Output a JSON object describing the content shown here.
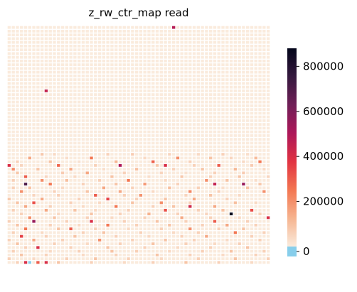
{
  "chart_data": {
    "type": "heatmap",
    "title": "z_rw_ctr_map read",
    "xlabel": "",
    "ylabel": "",
    "grid": false,
    "legend": "colorbar-right",
    "rows": 64,
    "cols": 64,
    "colorbar": {
      "min": 0,
      "max": 880000,
      "ticks": [
        0,
        200000,
        400000,
        600000,
        800000
      ],
      "tick_labels": [
        "0",
        "200000",
        "400000",
        "600000",
        "800000"
      ],
      "zero_color": "#87ceeb"
    },
    "colorscale": [
      "#faebdd",
      "#f6b48f",
      "#f37651",
      "#e13342",
      "#ad1759",
      "#701f57",
      "#35193e",
      "#03051a"
    ],
    "cell_gap_color": "#ffffff",
    "cells": [
      [
        0,
        40,
        480000
      ],
      [
        17,
        9,
        450000
      ],
      [
        34,
        8,
        80000
      ],
      [
        34,
        11,
        40000
      ],
      [
        34,
        24,
        60000
      ],
      [
        34,
        30,
        70000
      ],
      [
        34,
        39,
        50000
      ],
      [
        34,
        46,
        40000
      ],
      [
        34,
        52,
        60000
      ],
      [
        34,
        58,
        30000
      ],
      [
        35,
        5,
        150000
      ],
      [
        35,
        14,
        30000
      ],
      [
        35,
        20,
        250000
      ],
      [
        35,
        33,
        40000
      ],
      [
        35,
        41,
        200000
      ],
      [
        35,
        49,
        90000
      ],
      [
        35,
        54,
        50000
      ],
      [
        35,
        60,
        110000
      ],
      [
        36,
        2,
        60000
      ],
      [
        36,
        10,
        90000
      ],
      [
        36,
        17,
        20000
      ],
      [
        36,
        26,
        120000
      ],
      [
        36,
        35,
        290000
      ],
      [
        36,
        44,
        60000
      ],
      [
        36,
        57,
        40000
      ],
      [
        36,
        61,
        250000
      ],
      [
        37,
        0,
        400000
      ],
      [
        37,
        3,
        50000
      ],
      [
        37,
        12,
        280000
      ],
      [
        37,
        21,
        60000
      ],
      [
        37,
        27,
        500000
      ],
      [
        37,
        36,
        80000
      ],
      [
        37,
        38,
        400000
      ],
      [
        37,
        45,
        60000
      ],
      [
        37,
        51,
        300000
      ],
      [
        37,
        59,
        70000
      ],
      [
        38,
        1,
        210000
      ],
      [
        38,
        7,
        90000
      ],
      [
        38,
        15,
        160000
      ],
      [
        38,
        23,
        30000
      ],
      [
        38,
        31,
        100000
      ],
      [
        38,
        40,
        60000
      ],
      [
        38,
        47,
        90000
      ],
      [
        38,
        55,
        120000
      ],
      [
        38,
        62,
        40000
      ],
      [
        39,
        2,
        80000
      ],
      [
        39,
        13,
        70000
      ],
      [
        39,
        19,
        150000
      ],
      [
        39,
        28,
        60000
      ],
      [
        39,
        37,
        50000
      ],
      [
        39,
        43,
        20000
      ],
      [
        39,
        50,
        60000
      ],
      [
        39,
        57,
        70000
      ],
      [
        40,
        4,
        300000
      ],
      [
        40,
        9,
        50000
      ],
      [
        40,
        16,
        40000
      ],
      [
        40,
        25,
        90000
      ],
      [
        40,
        34,
        30000
      ],
      [
        40,
        42,
        80000
      ],
      [
        40,
        49,
        60000
      ],
      [
        40,
        56,
        90000
      ],
      [
        40,
        63,
        50000
      ],
      [
        41,
        1,
        60000
      ],
      [
        41,
        8,
        200000
      ],
      [
        41,
        14,
        100000
      ],
      [
        41,
        22,
        60000
      ],
      [
        41,
        29,
        250000
      ],
      [
        41,
        38,
        40000
      ],
      [
        41,
        48,
        200000
      ],
      [
        41,
        53,
        90000
      ],
      [
        41,
        60,
        30000
      ],
      [
        42,
        4,
        700000
      ],
      [
        42,
        10,
        250000
      ],
      [
        42,
        18,
        60000
      ],
      [
        42,
        26,
        90000
      ],
      [
        42,
        33,
        180000
      ],
      [
        42,
        41,
        60000
      ],
      [
        42,
        50,
        450000
      ],
      [
        42,
        57,
        550000
      ],
      [
        42,
        61,
        80000
      ],
      [
        43,
        1,
        60000
      ],
      [
        43,
        5,
        90000
      ],
      [
        43,
        13,
        40000
      ],
      [
        43,
        23,
        150000
      ],
      [
        43,
        30,
        60000
      ],
      [
        43,
        39,
        100000
      ],
      [
        43,
        46,
        60000
      ],
      [
        43,
        52,
        30000
      ],
      [
        43,
        58,
        90000
      ],
      [
        44,
        3,
        200000
      ],
      [
        44,
        11,
        60000
      ],
      [
        44,
        19,
        90000
      ],
      [
        44,
        27,
        150000
      ],
      [
        44,
        35,
        40000
      ],
      [
        44,
        44,
        220000
      ],
      [
        44,
        51,
        60000
      ],
      [
        44,
        62,
        200000
      ],
      [
        45,
        6,
        50000
      ],
      [
        45,
        12,
        60000
      ],
      [
        45,
        21,
        300000
      ],
      [
        45,
        28,
        60000
      ],
      [
        45,
        32,
        190000
      ],
      [
        45,
        43,
        50000
      ],
      [
        45,
        49,
        90000
      ],
      [
        45,
        56,
        40000
      ],
      [
        46,
        0,
        80000
      ],
      [
        46,
        8,
        150000
      ],
      [
        46,
        17,
        60000
      ],
      [
        46,
        24,
        350000
      ],
      [
        46,
        31,
        60000
      ],
      [
        46,
        38,
        90000
      ],
      [
        46,
        45,
        150000
      ],
      [
        46,
        53,
        60000
      ],
      [
        47,
        2,
        90000
      ],
      [
        47,
        6,
        320000
      ],
      [
        47,
        15,
        60000
      ],
      [
        47,
        22,
        40000
      ],
      [
        47,
        30,
        90000
      ],
      [
        47,
        37,
        200000
      ],
      [
        47,
        44,
        60000
      ],
      [
        47,
        55,
        100000
      ],
      [
        47,
        60,
        40000
      ],
      [
        48,
        4,
        150000
      ],
      [
        48,
        10,
        60000
      ],
      [
        48,
        18,
        40000
      ],
      [
        48,
        26,
        250000
      ],
      [
        48,
        35,
        60000
      ],
      [
        48,
        40,
        90000
      ],
      [
        48,
        44,
        420000
      ],
      [
        48,
        50,
        150000
      ],
      [
        49,
        1,
        60000
      ],
      [
        49,
        9,
        150000
      ],
      [
        49,
        16,
        90000
      ],
      [
        49,
        21,
        40000
      ],
      [
        49,
        29,
        60000
      ],
      [
        49,
        38,
        320000
      ],
      [
        49,
        46,
        60000
      ],
      [
        49,
        52,
        90000
      ],
      [
        49,
        59,
        330000
      ],
      [
        50,
        3,
        60000
      ],
      [
        50,
        12,
        40000
      ],
      [
        50,
        20,
        90000
      ],
      [
        50,
        27,
        60000
      ],
      [
        50,
        34,
        130000
      ],
      [
        50,
        41,
        60000
      ],
      [
        50,
        48,
        50000
      ],
      [
        50,
        54,
        880000
      ],
      [
        50,
        61,
        60000
      ],
      [
        51,
        5,
        200000
      ],
      [
        51,
        11,
        90000
      ],
      [
        51,
        19,
        60000
      ],
      [
        51,
        25,
        40000
      ],
      [
        51,
        33,
        60000
      ],
      [
        51,
        42,
        150000
      ],
      [
        51,
        49,
        60000
      ],
      [
        51,
        56,
        40000
      ],
      [
        51,
        63,
        400000
      ],
      [
        52,
        0,
        60000
      ],
      [
        52,
        6,
        550000
      ],
      [
        52,
        14,
        60000
      ],
      [
        52,
        20,
        400000
      ],
      [
        52,
        28,
        60000
      ],
      [
        52,
        36,
        90000
      ],
      [
        52,
        43,
        60000
      ],
      [
        52,
        50,
        300000
      ],
      [
        52,
        58,
        60000
      ],
      [
        53,
        2,
        90000
      ],
      [
        53,
        10,
        60000
      ],
      [
        53,
        17,
        40000
      ],
      [
        53,
        24,
        250000
      ],
      [
        53,
        31,
        60000
      ],
      [
        53,
        39,
        90000
      ],
      [
        53,
        47,
        60000
      ],
      [
        53,
        53,
        150000
      ],
      [
        53,
        60,
        60000
      ],
      [
        54,
        4,
        250000
      ],
      [
        54,
        12,
        90000
      ],
      [
        54,
        15,
        300000
      ],
      [
        54,
        21,
        60000
      ],
      [
        54,
        29,
        40000
      ],
      [
        54,
        37,
        60000
      ],
      [
        54,
        44,
        200000
      ],
      [
        54,
        51,
        60000
      ],
      [
        54,
        57,
        90000
      ],
      [
        55,
        1,
        60000
      ],
      [
        55,
        8,
        40000
      ],
      [
        55,
        18,
        60000
      ],
      [
        55,
        23,
        90000
      ],
      [
        55,
        32,
        60000
      ],
      [
        55,
        40,
        40000
      ],
      [
        55,
        46,
        60000
      ],
      [
        55,
        55,
        250000
      ],
      [
        55,
        62,
        60000
      ],
      [
        56,
        3,
        350000
      ],
      [
        56,
        9,
        60000
      ],
      [
        56,
        16,
        90000
      ],
      [
        56,
        26,
        60000
      ],
      [
        56,
        34,
        40000
      ],
      [
        56,
        42,
        60000
      ],
      [
        56,
        48,
        150000
      ],
      [
        56,
        59,
        60000
      ],
      [
        57,
        0,
        60000
      ],
      [
        57,
        6,
        150000
      ],
      [
        57,
        13,
        60000
      ],
      [
        57,
        22,
        200000
      ],
      [
        57,
        30,
        60000
      ],
      [
        57,
        38,
        90000
      ],
      [
        57,
        45,
        60000
      ],
      [
        57,
        53,
        40000
      ],
      [
        57,
        61,
        60000
      ],
      [
        58,
        2,
        90000
      ],
      [
        58,
        11,
        60000
      ],
      [
        58,
        19,
        40000
      ],
      [
        58,
        27,
        60000
      ],
      [
        58,
        35,
        90000
      ],
      [
        58,
        43,
        60000
      ],
      [
        58,
        50,
        40000
      ],
      [
        58,
        56,
        60000
      ],
      [
        59,
        4,
        60000
      ],
      [
        59,
        7,
        400000
      ],
      [
        59,
        15,
        60000
      ],
      [
        59,
        24,
        90000
      ],
      [
        59,
        33,
        60000
      ],
      [
        59,
        41,
        40000
      ],
      [
        59,
        49,
        60000
      ],
      [
        59,
        58,
        90000
      ],
      [
        60,
        1,
        60000
      ],
      [
        60,
        10,
        40000
      ],
      [
        60,
        17,
        60000
      ],
      [
        60,
        25,
        90000
      ],
      [
        60,
        31,
        60000
      ],
      [
        60,
        39,
        40000
      ],
      [
        60,
        47,
        60000
      ],
      [
        60,
        54,
        90000
      ],
      [
        60,
        62,
        60000
      ],
      [
        61,
        3,
        90000
      ],
      [
        61,
        9,
        60000
      ],
      [
        61,
        18,
        40000
      ],
      [
        61,
        26,
        60000
      ],
      [
        61,
        36,
        90000
      ],
      [
        61,
        44,
        60000
      ],
      [
        61,
        52,
        40000
      ],
      [
        61,
        60,
        60000
      ],
      [
        62,
        0,
        60000
      ],
      [
        62,
        6,
        40000
      ],
      [
        62,
        14,
        60000
      ],
      [
        62,
        21,
        90000
      ],
      [
        62,
        29,
        60000
      ],
      [
        62,
        37,
        40000
      ],
      [
        62,
        46,
        60000
      ],
      [
        62,
        55,
        90000
      ],
      [
        62,
        63,
        60000
      ],
      [
        63,
        2,
        60000
      ],
      [
        63,
        4,
        400000
      ],
      [
        63,
        5,
        0
      ],
      [
        63,
        7,
        300000
      ],
      [
        63,
        9,
        400000
      ],
      [
        63,
        12,
        90000
      ],
      [
        63,
        20,
        60000
      ],
      [
        63,
        28,
        40000
      ],
      [
        63,
        35,
        60000
      ],
      [
        63,
        43,
        90000
      ],
      [
        63,
        51,
        60000
      ],
      [
        63,
        59,
        40000
      ]
    ]
  }
}
